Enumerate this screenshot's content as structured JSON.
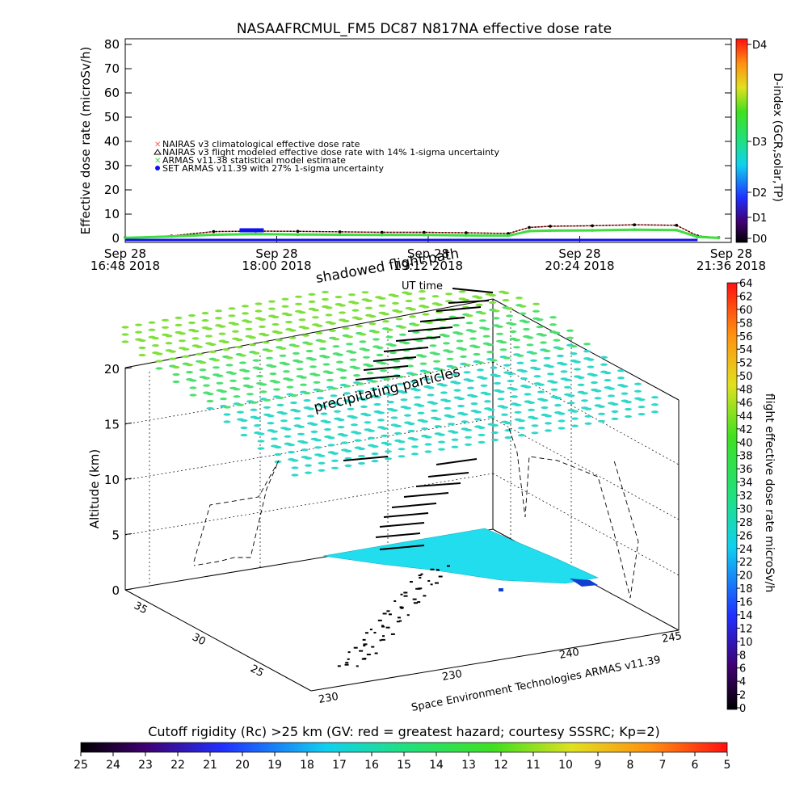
{
  "top_panel": {
    "title": "NASAAFRCMUL_FM5 DC87 N817NA effective dose rate",
    "ylabel": "Effective dose rate (microSv/h)",
    "y_ticks": [
      "0",
      "10",
      "20",
      "30",
      "40",
      "50",
      "60",
      "70",
      "80"
    ],
    "x_ticks": [
      {
        "line1": "Sep 28",
        "line2": "16:48 2018"
      },
      {
        "line1": "Sep 28",
        "line2": "18:00 2018"
      },
      {
        "line1": "Sep 28",
        "line2": "19:12 2018"
      },
      {
        "line1": "Sep 28",
        "line2": "20:24 2018"
      },
      {
        "line1": "Sep 28",
        "line2": "21:36 2018"
      }
    ],
    "legend": [
      {
        "label": "NAIRAS v3 climatological effective dose rate",
        "color": "#ff6060",
        "marker": "x-icon"
      },
      {
        "label": "NAIRAS v3 flight modeled effective dose rate with 14% 1-sigma uncertainty",
        "color": "#000000",
        "marker": "triangle-icon"
      },
      {
        "label": "ARMAS v11.38 statistical model estimate",
        "color": "#40dd40",
        "marker": "x-icon"
      },
      {
        "label": "SET ARMAS v11.39 with 27% 1-sigma uncertainty",
        "color": "#1010ee",
        "marker": "dot-icon"
      }
    ],
    "dindex_label": "D-index (GCR,solar,TP)",
    "dindex_ticks": [
      "D0",
      "D1",
      "D2",
      "D3",
      "D4"
    ]
  },
  "chart_data": [
    {
      "type": "line",
      "title": "NASAAFRCMUL_FM5 DC87 N817NA effective dose rate",
      "xlabel": "",
      "ylabel": "Effective dose rate (microSv/h)",
      "ylim": [
        0,
        80
      ],
      "x": [
        "16:48",
        "17:10",
        "17:30",
        "17:50",
        "18:10",
        "18:30",
        "18:50",
        "19:10",
        "19:30",
        "19:50",
        "20:00",
        "20:10",
        "20:30",
        "20:50",
        "21:10",
        "21:20",
        "21:30"
      ],
      "series": [
        {
          "name": "NAIRAS v3 climatological effective dose rate",
          "values": [
            0.3,
            1.0,
            2.8,
            3.0,
            2.9,
            2.7,
            2.5,
            2.5,
            2.3,
            2.0,
            4.5,
            5.0,
            5.2,
            5.6,
            5.4,
            1.0,
            0.3
          ]
        },
        {
          "name": "NAIRAS v3 flight modeled effective dose rate with 14% 1-sigma uncertainty",
          "values": [
            0.3,
            1.0,
            2.8,
            3.0,
            2.9,
            2.7,
            2.5,
            2.5,
            2.3,
            2.0,
            4.5,
            5.0,
            5.2,
            5.6,
            5.4,
            1.0,
            0.3
          ]
        },
        {
          "name": "ARMAS v11.38 statistical model estimate",
          "values": [
            0.2,
            0.8,
            1.5,
            1.8,
            1.6,
            1.5,
            1.4,
            1.4,
            1.2,
            1.1,
            3.0,
            3.2,
            3.3,
            3.6,
            3.4,
            0.6,
            0.2
          ]
        },
        {
          "name": "SET ARMAS v11.39 with 27% 1-sigma uncertainty",
          "values": [
            0,
            0,
            0,
            3.5,
            0,
            0,
            0,
            0,
            0,
            0,
            0,
            0,
            0,
            0,
            0,
            0,
            0
          ]
        }
      ],
      "legend_position": "upper-left"
    },
    {
      "type": "scatter",
      "title": "",
      "zlabel": "Altitude (km)",
      "z_ticks": [
        "0",
        "5",
        "10",
        "15",
        "20"
      ],
      "lat_ticks": [
        "35",
        "30",
        "25"
      ],
      "lon_ticks": [
        "230",
        "230",
        "240",
        "245"
      ],
      "annotations": [
        "shadowed flight path",
        "UT time",
        "precipitating particles",
        "Space Environment Technologies ARMAS v11.39"
      ],
      "colorbar_label": "flight effective dose rate microSv/h",
      "colorbar_ticks": [
        "0",
        "2",
        "4",
        "6",
        "8",
        "10",
        "12",
        "14",
        "16",
        "18",
        "20",
        "22",
        "24",
        "26",
        "28",
        "30",
        "32",
        "34",
        "36",
        "38",
        "40",
        "42",
        "44",
        "46",
        "48",
        "50",
        "52",
        "54",
        "56",
        "58",
        "60",
        "62",
        "64"
      ]
    },
    {
      "type": "heatmap",
      "title": "Cutoff rigidity (Rc) >25 km (GV: red = greatest hazard; courtesy SSSRC; Kp=2)",
      "colorbar_ticks": [
        "25",
        "24",
        "23",
        "22",
        "21",
        "20",
        "19",
        "18",
        "17",
        "16",
        "15",
        "14",
        "13",
        "12",
        "11",
        "10",
        "9",
        "8",
        "7",
        "6",
        "5"
      ]
    }
  ],
  "bottom_panel": {
    "title": "Cutoff rigidity (Rc) >25 km (GV: red = greatest hazard; courtesy SSSRC; Kp=2)"
  },
  "colors": {
    "nairas_clim": "#ff6060",
    "nairas_flight": "#000000",
    "armas_model": "#40dd40",
    "armas_set": "#1010ee",
    "rigidity_fill": "#22ddee"
  }
}
